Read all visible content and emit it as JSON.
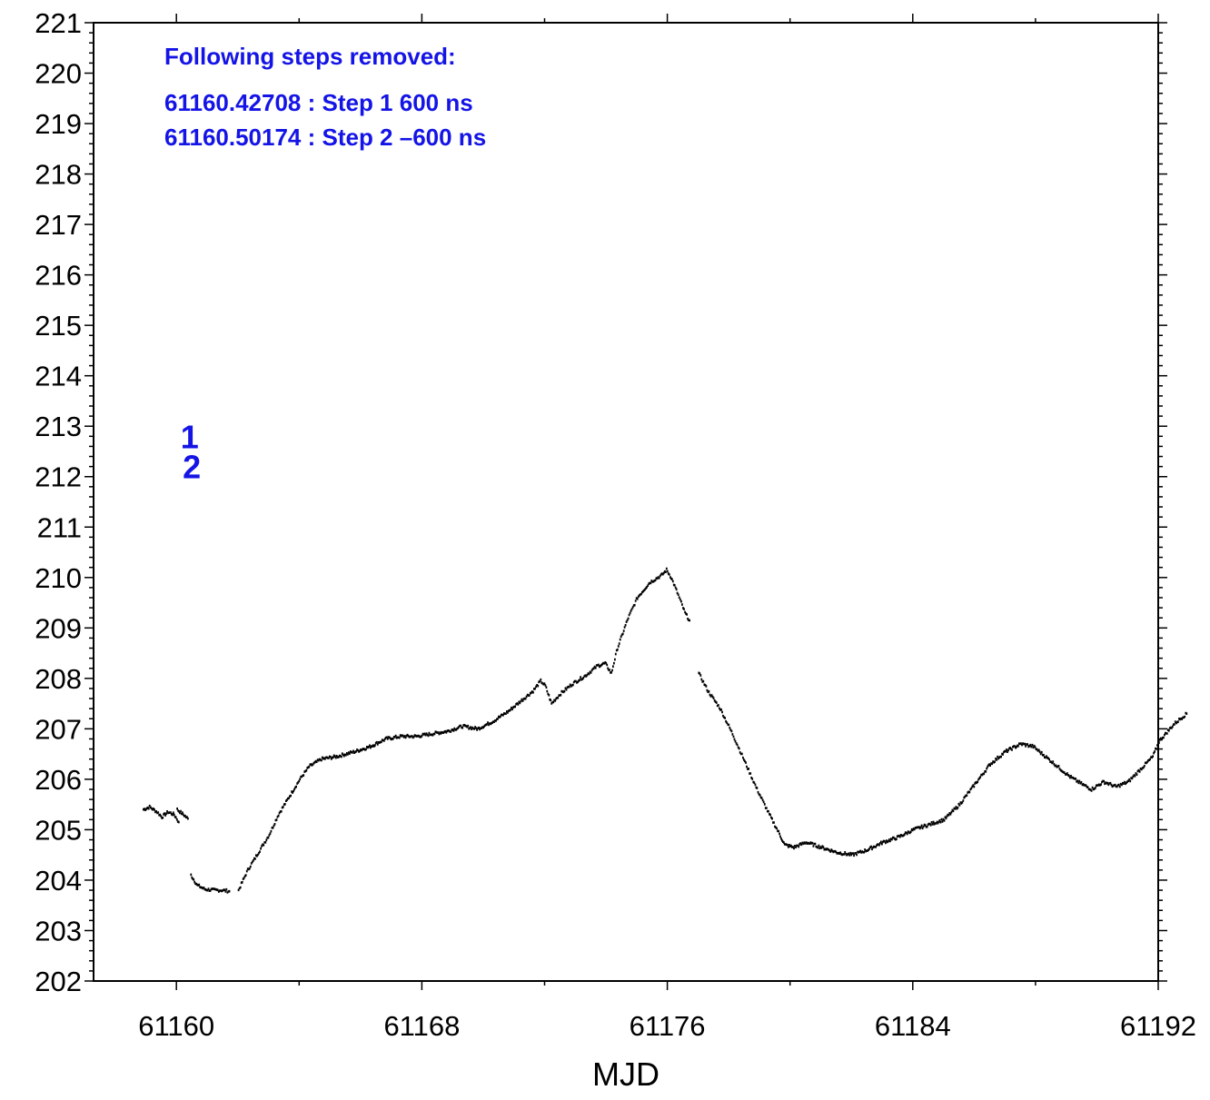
{
  "chart_data": {
    "type": "scatter",
    "xlabel": "MJD",
    "ylabel": "",
    "xlim": [
      61157.3,
      61192
    ],
    "ylim": [
      202,
      221
    ],
    "x_ticks": [
      "61160",
      "61168",
      "61176",
      "61184",
      "61192"
    ],
    "y_ticks": [
      "202",
      "203",
      "204",
      "205",
      "206",
      "207",
      "208",
      "209",
      "210",
      "211",
      "212",
      "213",
      "214",
      "215",
      "216",
      "217",
      "218",
      "219",
      "220",
      "221"
    ],
    "grid": false,
    "annotation": {
      "header": "Following steps removed:",
      "lines": [
        "61160.42708 : Step 1 600 ns",
        "61160.50174 : Step 2 –600 ns"
      ]
    },
    "step_markers": [
      {
        "label": "1",
        "x": 61160.43,
        "y": 212.8
      },
      {
        "label": "2",
        "x": 61160.5,
        "y": 212.2
      }
    ],
    "colors": {
      "data": "#000000",
      "annotation": "#1414e6",
      "axis": "#000000"
    },
    "series": [
      {
        "segments": [
          [
            [
              58.9,
              205.4
            ],
            [
              59.1,
              205.45
            ],
            [
              59.35,
              205.35
            ],
            [
              59.5,
              205.25
            ],
            [
              59.7,
              205.35
            ],
            [
              59.9,
              205.3
            ],
            [
              60.05,
              205.15
            ]
          ],
          [
            [
              60.0,
              205.4
            ],
            [
              60.2,
              205.3
            ],
            [
              60.35,
              205.22
            ]
          ],
          [
            [
              60.45,
              204.1
            ],
            [
              60.65,
              203.9
            ],
            [
              60.9,
              203.82
            ],
            [
              61.2,
              203.8
            ],
            [
              61.45,
              203.8
            ],
            [
              61.7,
              203.78
            ]
          ],
          [
            [
              62.0,
              203.8
            ],
            [
              62.3,
              204.2
            ],
            [
              62.6,
              204.5
            ],
            [
              63.0,
              204.9
            ],
            [
              63.3,
              205.3
            ],
            [
              63.7,
              205.7
            ],
            [
              64.0,
              206.0
            ],
            [
              64.3,
              206.25
            ],
            [
              64.7,
              206.4
            ],
            [
              65.2,
              206.45
            ],
            [
              65.8,
              206.55
            ],
            [
              66.3,
              206.65
            ],
            [
              66.8,
              206.8
            ],
            [
              67.3,
              206.85
            ],
            [
              67.8,
              206.85
            ],
            [
              68.3,
              206.9
            ],
            [
              68.8,
              206.95
            ],
            [
              69.3,
              207.05
            ],
            [
              69.8,
              207.0
            ],
            [
              70.3,
              207.15
            ],
            [
              70.8,
              207.35
            ],
            [
              71.2,
              207.55
            ],
            [
              71.6,
              207.75
            ],
            [
              71.85,
              207.95
            ],
            [
              72.0,
              207.85
            ],
            [
              72.2,
              207.5
            ],
            [
              72.5,
              207.7
            ],
            [
              72.9,
              207.9
            ],
            [
              73.3,
              208.05
            ],
            [
              73.7,
              208.25
            ],
            [
              73.95,
              208.3
            ],
            [
              74.15,
              208.1
            ],
            [
              74.35,
              208.6
            ],
            [
              74.7,
              209.2
            ],
            [
              75.0,
              209.6
            ],
            [
              75.4,
              209.9
            ],
            [
              75.8,
              210.05
            ],
            [
              75.95,
              210.15
            ],
            [
              76.1,
              210.0
            ],
            [
              76.3,
              209.7
            ],
            [
              76.55,
              209.3
            ],
            [
              76.7,
              209.15
            ]
          ],
          [
            [
              77.0,
              208.1
            ],
            [
              77.3,
              207.75
            ],
            [
              77.7,
              207.4
            ],
            [
              78.1,
              206.9
            ],
            [
              78.5,
              206.35
            ],
            [
              78.9,
              205.8
            ],
            [
              79.3,
              205.3
            ],
            [
              79.6,
              204.95
            ],
            [
              79.8,
              204.7
            ],
            [
              80.1,
              204.65
            ],
            [
              80.5,
              204.75
            ],
            [
              81.0,
              204.65
            ],
            [
              81.5,
              204.55
            ],
            [
              82.0,
              204.5
            ],
            [
              82.5,
              204.6
            ],
            [
              83.0,
              204.75
            ],
            [
              83.5,
              204.85
            ],
            [
              84.0,
              205.0
            ],
            [
              84.5,
              205.1
            ],
            [
              85.0,
              205.2
            ],
            [
              85.5,
              205.5
            ],
            [
              86.0,
              205.9
            ],
            [
              86.5,
              206.3
            ],
            [
              87.0,
              206.55
            ],
            [
              87.5,
              206.7
            ],
            [
              87.9,
              206.65
            ],
            [
              88.3,
              206.45
            ],
            [
              88.7,
              206.25
            ],
            [
              89.1,
              206.05
            ],
            [
              89.5,
              205.9
            ],
            [
              89.8,
              205.8
            ],
            [
              90.2,
              205.95
            ],
            [
              90.6,
              205.85
            ],
            [
              91.0,
              205.95
            ],
            [
              91.4,
              206.2
            ],
            [
              91.8,
              206.45
            ],
            [
              92.0,
              206.75
            ],
            [
              92.5,
              207.1
            ],
            [
              92.9,
              207.3
            ]
          ]
        ]
      }
    ]
  }
}
